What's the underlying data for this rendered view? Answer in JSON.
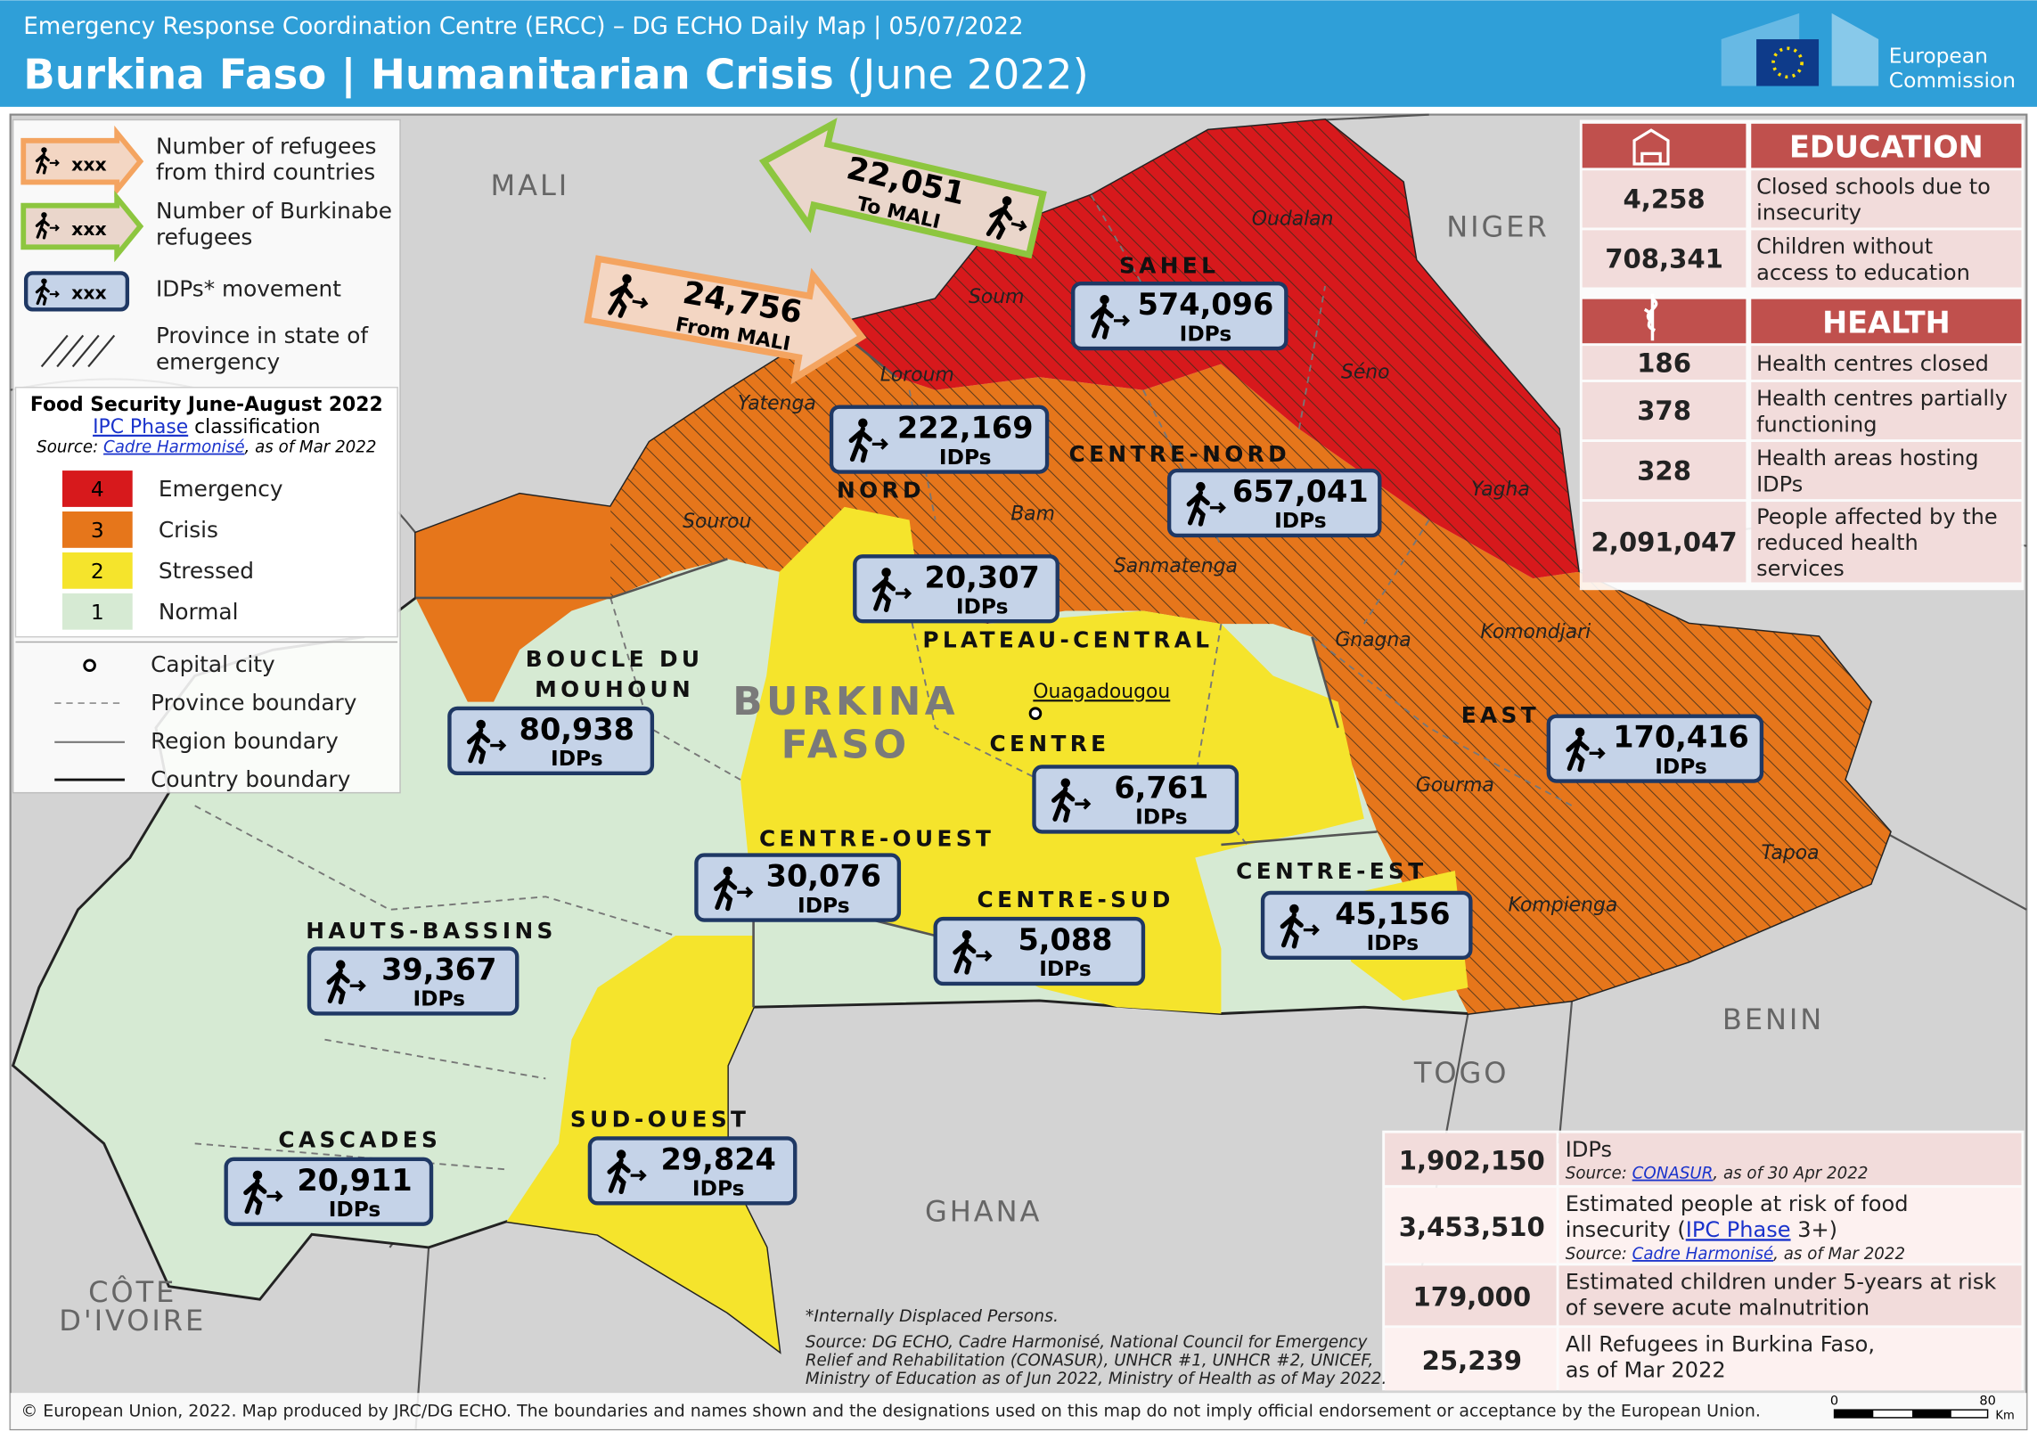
{
  "header": {
    "title_line": "Emergency Response Coordination Centre (ERCC) – DG ECHO Daily Map | 05/07/2022",
    "title": "Burkina Faso | Humanitarian Crisis",
    "subtitle": "(June 2022)",
    "logo": [
      "European",
      "Commission"
    ]
  },
  "legend": {
    "items": [
      {
        "sample": "xxx",
        "label": [
          "Number of refugees",
          "from third countries"
        ]
      },
      {
        "sample": "xxx",
        "label": [
          "Number of Burkinabe",
          "refugees"
        ]
      },
      {
        "sample": "xxx",
        "label": [
          "IDPs* movement"
        ]
      },
      {
        "label": [
          "Province in state of",
          "emergency"
        ]
      }
    ],
    "food_security": {
      "title": "Food Security June-August 2022",
      "line2": [
        {
          "text": "IPC Phase",
          "link": true
        },
        {
          "text": " classification"
        }
      ],
      "source": [
        {
          "text": "Source: "
        },
        {
          "text": "Cadre Harmonisé",
          "link": true
        },
        {
          "text": ", as of Mar 2022"
        }
      ],
      "phases": [
        {
          "phase": 4,
          "label": "Emergency",
          "color": "#d7191c"
        },
        {
          "phase": 3,
          "label": "Crisis",
          "color": "#e6761b"
        },
        {
          "phase": 2,
          "label": "Stressed",
          "color": "#f5e42c"
        },
        {
          "phase": 1,
          "label": "Normal",
          "color": "#d6ead3"
        }
      ]
    },
    "boundaries": [
      "Capital city",
      "Province boundary",
      "Region boundary",
      "Country boundary"
    ]
  },
  "countries": [
    [
      "MALI"
    ],
    [
      "NIGER"
    ],
    [
      "BENIN"
    ],
    [
      "TOGO"
    ],
    [
      "GHANA"
    ],
    [
      "CÔTE",
      "D'IVOIRE"
    ]
  ],
  "country_name": [
    "BURKINA",
    "FASO"
  ],
  "capital": "Ouagadougou",
  "provinces": [
    "Oudalan",
    "Soum",
    "Séno",
    "Loroum",
    "Yatenga",
    "Sourou",
    "Bam",
    "Yagha",
    "Sanmatenga",
    "Gnagna",
    "Komondjari",
    "Gourma",
    "Tapoa",
    "Kompienga"
  ],
  "regions": [
    {
      "name": [
        "SAHEL"
      ],
      "idps": "574,096",
      "unit": "IDPs"
    },
    {
      "name": [
        "NORD"
      ],
      "idps": "222,169",
      "unit": "IDPs"
    },
    {
      "name": [
        "CENTRE-NORD"
      ],
      "idps": "657,041",
      "unit": "IDPs"
    },
    {
      "name": [
        "PLATEAU-CENTRAL"
      ],
      "idps": "20,307",
      "unit": "IDPs"
    },
    {
      "name": [
        "BOUCLE DU",
        "MOUHOUN"
      ],
      "idps": "80,938",
      "unit": "IDPs"
    },
    {
      "name": [
        "CENTRE"
      ],
      "idps": "6,761",
      "unit": "IDPs"
    },
    {
      "name": [
        "CENTRE-OUEST"
      ],
      "idps": "30,076",
      "unit": "IDPs"
    },
    {
      "name": [
        "CENTRE-SUD"
      ],
      "idps": "5,088",
      "unit": "IDPs"
    },
    {
      "name": [
        "CENTRE-EST"
      ],
      "idps": "45,156",
      "unit": "IDPs"
    },
    {
      "name": [
        "EAST"
      ],
      "idps": "170,416",
      "unit": "IDPs"
    },
    {
      "name": [
        "HAUTS-BASSINS"
      ],
      "idps": "39,367",
      "unit": "IDPs"
    },
    {
      "name": [
        "CASCADES"
      ],
      "idps": "20,911",
      "unit": "IDPs"
    },
    {
      "name": [
        "SUD-OUEST"
      ],
      "idps": "29,824",
      "unit": "IDPs"
    }
  ],
  "flows": [
    {
      "value": "22,051",
      "direction": "To",
      "country": "MALI"
    },
    {
      "value": "24,756",
      "direction": "From",
      "country": "MALI"
    }
  ],
  "education": {
    "title": "EDUCATION",
    "rows": [
      {
        "value": "4,258",
        "label": [
          "Closed schools due to",
          "insecurity"
        ]
      },
      {
        "value": "708,341",
        "label": [
          "Children without",
          "access to education"
        ]
      }
    ]
  },
  "health": {
    "title": "HEALTH",
    "rows": [
      {
        "value": "186",
        "label": [
          "Health centres closed"
        ]
      },
      {
        "value": "378",
        "label": [
          "Health centres partially",
          "functioning"
        ]
      },
      {
        "value": "328",
        "label": [
          "Health areas hosting",
          "IDPs"
        ]
      },
      {
        "value": "2,091,047",
        "label": [
          "People affected by the",
          "reduced health",
          "services"
        ]
      }
    ]
  },
  "key_figures": [
    {
      "value": "1,902,150",
      "label": [
        "IDPs"
      ],
      "source": [
        {
          "text": "Source: "
        },
        {
          "text": "CONASUR",
          "link": true
        },
        {
          "text": ", as of 30 Apr 2022"
        }
      ]
    },
    {
      "value": "3,453,510",
      "label": [
        "Estimated people at risk of food",
        [
          {
            "text": "insecurity ("
          },
          {
            "text": "IPC Phase",
            "link": true
          },
          {
            "text": " 3+)"
          }
        ]
      ],
      "source": [
        {
          "text": "Source: "
        },
        {
          "text": "Cadre Harmonisé",
          "link": true
        },
        {
          "text": ", as of Mar 2022"
        }
      ]
    },
    {
      "value": "179,000",
      "label": [
        "Estimated children under 5-years at risk",
        "of severe acute malnutrition"
      ]
    },
    {
      "value": "25,239",
      "label": [
        "All Refugees in Burkina Faso,",
        "as of Mar 2022"
      ]
    }
  ],
  "footnote": "*Internally Displaced Persons.",
  "sources": [
    "Source: DG ECHO, Cadre Harmonisé, National Council for Emergency",
    "Relief and Rehabilitation (CONASUR), UNHCR #1, UNHCR #2, UNICEF,",
    "Ministry of Education as of Jun 2022, Ministry of Health as of May 2022."
  ],
  "copyright": "© European Union, 2022. Map produced by JRC/DG ECHO. The boundaries and names shown and the designations used on this map do not imply official endorsement or acceptance by the European Union.",
  "scale": {
    "start": "0",
    "end": "80",
    "unit": "Km"
  }
}
